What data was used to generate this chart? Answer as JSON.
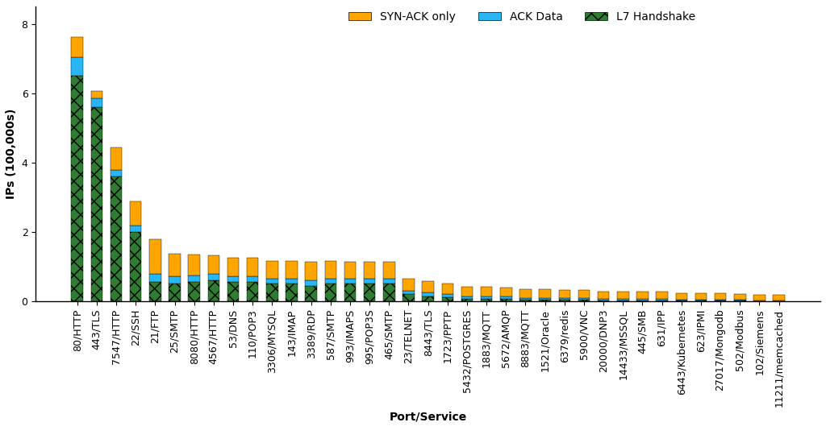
{
  "categories": [
    "80/HTTP",
    "443/TLS",
    "7547/HTTP",
    "22/SSH",
    "21/FTP",
    "25/SMTP",
    "8080/HTTP",
    "4567/HTTP",
    "53/DNS",
    "110/POP3",
    "3306/MYSQL",
    "143/IMAP",
    "3389/RDP",
    "587/SMTP",
    "993/IMAPS",
    "995/POP3S",
    "465/SMTP",
    "23/TELNET",
    "8443/TLS",
    "1723/PPTP",
    "5432/POSTGRES",
    "1883/MQTT",
    "5672/AMQP",
    "8883/MQTT",
    "1521/Oracle",
    "6379/redis",
    "5900/VNC",
    "20000/DNP3",
    "14433/MSSQL",
    "445/SMB",
    "631/IPP",
    "6443/Kubernetes",
    "623/IPMI",
    "27017/Mongodb",
    "502/Modbus",
    "102/Siemens",
    "11211/memcached"
  ],
  "l7_handshake": [
    6.5,
    5.6,
    3.6,
    2.0,
    0.55,
    0.5,
    0.55,
    0.6,
    0.55,
    0.55,
    0.5,
    0.5,
    0.45,
    0.5,
    0.5,
    0.5,
    0.5,
    0.2,
    0.15,
    0.12,
    0.08,
    0.08,
    0.07,
    0.05,
    0.05,
    0.04,
    0.04,
    0.03,
    0.03,
    0.03,
    0.03,
    0.02,
    0.02,
    0.02,
    0.02,
    0.01,
    0.01
  ],
  "ack_data": [
    0.55,
    0.25,
    0.2,
    0.18,
    0.25,
    0.22,
    0.2,
    0.18,
    0.18,
    0.18,
    0.16,
    0.16,
    0.16,
    0.16,
    0.14,
    0.14,
    0.14,
    0.1,
    0.1,
    0.08,
    0.07,
    0.07,
    0.06,
    0.05,
    0.05,
    0.05,
    0.05,
    0.04,
    0.04,
    0.04,
    0.04,
    0.03,
    0.03,
    0.03,
    0.03,
    0.02,
    0.02
  ],
  "syn_ack_only": [
    0.58,
    0.22,
    0.65,
    0.7,
    1.0,
    0.65,
    0.6,
    0.55,
    0.52,
    0.52,
    0.5,
    0.5,
    0.52,
    0.5,
    0.5,
    0.5,
    0.5,
    0.35,
    0.32,
    0.3,
    0.28,
    0.28,
    0.27,
    0.25,
    0.25,
    0.24,
    0.24,
    0.22,
    0.22,
    0.22,
    0.21,
    0.19,
    0.18,
    0.18,
    0.17,
    0.16,
    0.16
  ],
  "color_syn_ack": "#FFA500",
  "color_ack_data": "#29B6F6",
  "color_l7": "#2E7D32",
  "ylabel": "IPs (100,000s)",
  "xlabel": "Port/Service",
  "ylim": [
    0,
    8.5
  ],
  "yticks": [
    0,
    2,
    4,
    6,
    8
  ],
  "background_color": "#ffffff"
}
